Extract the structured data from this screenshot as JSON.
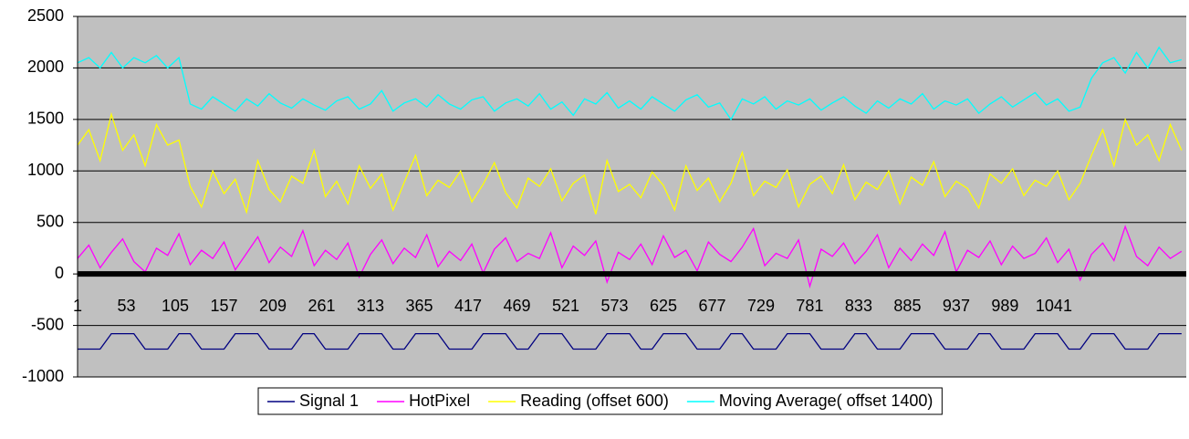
{
  "chart_data": {
    "type": "line",
    "x": [
      1,
      13,
      25,
      37,
      49,
      61,
      73,
      85,
      97,
      109,
      121,
      133,
      145,
      157,
      169,
      181,
      193,
      205,
      217,
      229,
      241,
      253,
      265,
      277,
      289,
      301,
      313,
      325,
      337,
      349,
      361,
      373,
      385,
      397,
      409,
      421,
      433,
      445,
      457,
      469,
      481,
      493,
      505,
      517,
      529,
      541,
      553,
      565,
      577,
      589,
      601,
      613,
      625,
      637,
      649,
      661,
      673,
      685,
      697,
      709,
      721,
      733,
      745,
      757,
      769,
      781,
      793,
      805,
      817,
      829,
      841,
      853,
      865,
      877,
      889,
      901,
      913,
      925,
      937,
      949,
      961,
      973,
      985,
      997,
      1009,
      1021,
      1033,
      1045,
      1057,
      1069,
      1081,
      1093,
      1105,
      1117,
      1129,
      1141,
      1153,
      1165,
      1177
    ],
    "xlim": [
      1,
      1182
    ],
    "xticks": [
      1,
      53,
      105,
      157,
      209,
      261,
      313,
      365,
      417,
      469,
      521,
      573,
      625,
      677,
      729,
      781,
      833,
      885,
      937,
      989,
      1041
    ],
    "ylim": [
      -1000,
      2500
    ],
    "yticks": [
      -1000,
      -500,
      0,
      500,
      1000,
      1500,
      2000,
      2500
    ],
    "grid": true,
    "legend": "bottom",
    "series": [
      {
        "name": "Signal 1",
        "color": "#000080",
        "values": [
          -730,
          -730,
          -730,
          -580,
          -580,
          -580,
          -730,
          -730,
          -730,
          -580,
          -580,
          -730,
          -730,
          -730,
          -580,
          -580,
          -580,
          -730,
          -730,
          -730,
          -580,
          -580,
          -730,
          -730,
          -730,
          -580,
          -580,
          -580,
          -730,
          -730,
          -580,
          -580,
          -580,
          -730,
          -730,
          -730,
          -580,
          -580,
          -580,
          -730,
          -730,
          -580,
          -580,
          -580,
          -730,
          -730,
          -730,
          -580,
          -580,
          -580,
          -730,
          -730,
          -580,
          -580,
          -580,
          -730,
          -730,
          -730,
          -580,
          -580,
          -730,
          -730,
          -730,
          -580,
          -580,
          -580,
          -730,
          -730,
          -730,
          -580,
          -580,
          -730,
          -730,
          -730,
          -580,
          -580,
          -580,
          -730,
          -730,
          -730,
          -580,
          -580,
          -730,
          -730,
          -730,
          -580,
          -580,
          -580,
          -730,
          -730,
          -580,
          -580,
          -580,
          -730,
          -730,
          -730,
          -580,
          -580,
          -580
        ]
      },
      {
        "name": "HotPixel",
        "color": "#ff00ff",
        "values": [
          150,
          280,
          60,
          210,
          340,
          120,
          20,
          250,
          180,
          390,
          90,
          230,
          150,
          310,
          40,
          200,
          360,
          110,
          260,
          170,
          420,
          80,
          230,
          140,
          300,
          -30,
          190,
          330,
          100,
          250,
          160,
          380,
          70,
          220,
          130,
          290,
          10,
          240,
          350,
          120,
          200,
          150,
          400,
          60,
          270,
          180,
          320,
          -80,
          210,
          140,
          290,
          90,
          370,
          160,
          230,
          30,
          310,
          190,
          120,
          260,
          440,
          80,
          200,
          150,
          330,
          -120,
          240,
          170,
          300,
          100,
          220,
          380,
          60,
          250,
          130,
          290,
          180,
          410,
          20,
          230,
          160,
          320,
          90,
          270,
          150,
          200,
          350,
          110,
          240,
          -60,
          190,
          300,
          130,
          460,
          170,
          80,
          260,
          150,
          220
        ]
      },
      {
        "name": "Reading (offset 600)",
        "color": "#ffff00",
        "values": [
          1250,
          1400,
          1100,
          1550,
          1200,
          1350,
          1050,
          1450,
          1250,
          1300,
          850,
          650,
          1000,
          780,
          920,
          600,
          1100,
          820,
          700,
          950,
          880,
          1200,
          750,
          900,
          680,
          1050,
          830,
          970,
          620,
          890,
          1150,
          760,
          910,
          840,
          1000,
          700,
          870,
          1080,
          790,
          640,
          930,
          850,
          1020,
          710,
          880,
          960,
          580,
          1100,
          800,
          870,
          740,
          990,
          860,
          620,
          1050,
          810,
          930,
          700,
          880,
          1180,
          760,
          900,
          840,
          1010,
          650,
          870,
          950,
          780,
          1060,
          720,
          890,
          820,
          1000,
          680,
          940,
          860,
          1090,
          750,
          900,
          830,
          640,
          970,
          880,
          1020,
          760,
          910,
          850,
          1000,
          720,
          880,
          1150,
          1400,
          1050,
          1500,
          1250,
          1350,
          1100,
          1450,
          1200
        ]
      },
      {
        "name": "Moving Average( offset 1400)",
        "color": "#00ffff",
        "values": [
          2050,
          2100,
          2000,
          2150,
          2000,
          2100,
          2050,
          2120,
          2000,
          2100,
          1650,
          1600,
          1720,
          1650,
          1580,
          1700,
          1630,
          1750,
          1660,
          1610,
          1700,
          1640,
          1590,
          1680,
          1720,
          1600,
          1650,
          1780,
          1580,
          1660,
          1700,
          1620,
          1740,
          1650,
          1600,
          1690,
          1720,
          1580,
          1660,
          1700,
          1630,
          1750,
          1600,
          1670,
          1540,
          1700,
          1650,
          1760,
          1610,
          1680,
          1600,
          1720,
          1650,
          1580,
          1690,
          1740,
          1620,
          1660,
          1500,
          1700,
          1650,
          1720,
          1600,
          1680,
          1640,
          1700,
          1590,
          1660,
          1720,
          1630,
          1560,
          1680,
          1610,
          1700,
          1650,
          1750,
          1600,
          1680,
          1640,
          1700,
          1560,
          1650,
          1720,
          1620,
          1690,
          1760,
          1640,
          1700,
          1580,
          1620,
          1900,
          2050,
          2100,
          1950,
          2150,
          2000,
          2200,
          2050,
          2080
        ]
      }
    ]
  }
}
